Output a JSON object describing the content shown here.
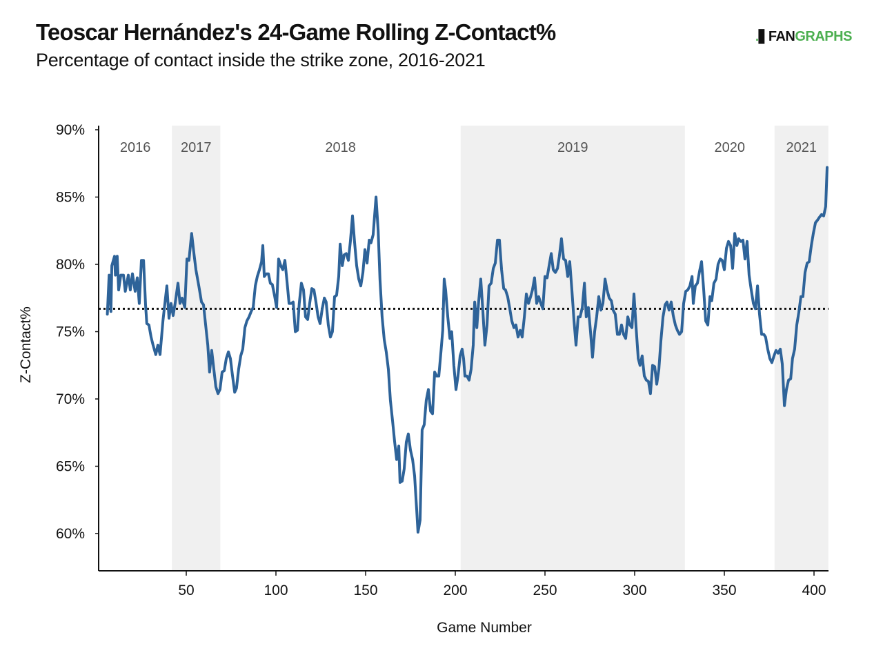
{
  "header": {
    "title": "Teoscar Hernández's 24-Game Rolling Z-Contact%",
    "subtitle": "Percentage of contact inside the strike zone, 2016-2021",
    "logo_prefix": "FAN",
    "logo_suffix": "GRAPHS"
  },
  "colors": {
    "line": "#2e6399",
    "band": "#f0f0f0",
    "reference": "#111111",
    "logo_green": "#4caf50"
  },
  "chart_data": {
    "type": "line",
    "title": "Teoscar Hernández's 24-Game Rolling Z-Contact%",
    "subtitle": "Percentage of contact inside the strike zone, 2016-2021",
    "xlabel": "Game Number",
    "ylabel": "Z-Contact%",
    "xlim": [
      0,
      410
    ],
    "ylim": [
      57.5,
      90
    ],
    "xticks": [
      50,
      100,
      150,
      200,
      250,
      300,
      350,
      400
    ],
    "yticks": [
      60,
      65,
      70,
      75,
      80,
      85,
      90
    ],
    "ytick_labels": [
      "60%",
      "65%",
      "70%",
      "75%",
      "80%",
      "85%",
      "90%"
    ],
    "grid": false,
    "reference_line": {
      "value": 76.7,
      "style": "dotted"
    },
    "seasons": [
      {
        "label": "2016",
        "start": 0,
        "end": 42,
        "shaded": false
      },
      {
        "label": "2017",
        "start": 42,
        "end": 69,
        "shaded": true
      },
      {
        "label": "2018",
        "start": 69,
        "end": 203,
        "shaded": false
      },
      {
        "label": "2019",
        "start": 203,
        "end": 328,
        "shaded": true
      },
      {
        "label": "2020",
        "start": 328,
        "end": 378,
        "shaded": false
      },
      {
        "label": "2021",
        "start": 378,
        "end": 408,
        "shaded": true
      }
    ],
    "series": [
      {
        "name": "Z-Contact% (24-game rolling)",
        "x": [
          6,
          7,
          8,
          8.5,
          10,
          10.5,
          11.5,
          12.3,
          13.5,
          15,
          16,
          17.7,
          18.8,
          20,
          21.5,
          22.7,
          23.8,
          25,
          26.2,
          27.3,
          28,
          29.2,
          30.4,
          31.5,
          33,
          34.2,
          35.4,
          37,
          38,
          39.2,
          40.4,
          41.5,
          42.7,
          43.8,
          45.4,
          46.5,
          47.7,
          49.2,
          50.4,
          51.5,
          53,
          54.2,
          55.4,
          57,
          58.5,
          59.6,
          60.8,
          62,
          63,
          64.2,
          65.4,
          66.5,
          67.7,
          68.8,
          70,
          71.2,
          72.3,
          73.5,
          74.6,
          75.8,
          77,
          78,
          79.2,
          80.4,
          81.5,
          82.7,
          83.8,
          85,
          86.2,
          87.3,
          88.5,
          89.6,
          90.8,
          92,
          92.7,
          93.5,
          94.6,
          95.8,
          96.9,
          98,
          99.2,
          100.4,
          101.5,
          102.7,
          103.8,
          105,
          106.2,
          107.3,
          108.5,
          109.6,
          110.8,
          112,
          113,
          114.2,
          115.4,
          116.5,
          117.7,
          118.8,
          120,
          121.2,
          122.3,
          123.5,
          124.6,
          125.8,
          127,
          128,
          129.2,
          130.4,
          131.5,
          132.7,
          133.8,
          135,
          135.8,
          137,
          138,
          139.2,
          140.4,
          141.5,
          142.7,
          143.8,
          145,
          146.2,
          147.3,
          148.5,
          149.6,
          150.8,
          152,
          153,
          154.2,
          155.8,
          157,
          158,
          159.2,
          160.4,
          161.5,
          162.7,
          163.8,
          165,
          166.2,
          167.3,
          168.5,
          169.2,
          170.4,
          171.5,
          172.7,
          173.8,
          175,
          176.2,
          177.3,
          178.5,
          179.2,
          180.4,
          181.5,
          182.7,
          183.8,
          185,
          186.2,
          187.3,
          188.5,
          189.6,
          190.8,
          192,
          193,
          193.8,
          194.6,
          195.8,
          197,
          198,
          199.2,
          200.4,
          201.5,
          202.7,
          203.8,
          204.6,
          205.4,
          206.5,
          207.7,
          208.8,
          210,
          210.8,
          212,
          213,
          214.2,
          215.4,
          216.5,
          217.7,
          218.8,
          220,
          221.2,
          222.3,
          223.5,
          224.6,
          225.8,
          227,
          228,
          229.2,
          230.4,
          231.5,
          232.7,
          233.8,
          235,
          236.2,
          237.3,
          238.5,
          239.6,
          240.8,
          242,
          243,
          244.2,
          245.4,
          246.5,
          247.7,
          248.8,
          250,
          251.2,
          252.3,
          253.5,
          254.6,
          255.8,
          257,
          258,
          259.2,
          260.4,
          261.5,
          262.7,
          263.8,
          265,
          266.2,
          267.3,
          268.5,
          269.6,
          270.8,
          272,
          273,
          274.2,
          275.4,
          276.5,
          277.7,
          278.8,
          280,
          281.2,
          282.3,
          283.5,
          284.6,
          285.8,
          287,
          288,
          289.2,
          290.4,
          291.5,
          292.7,
          293.8,
          295,
          296.2,
          297.3,
          298.5,
          299.6,
          300.8,
          302,
          303,
          304.2,
          305.4,
          306.5,
          307.7,
          308.8,
          310,
          311.2,
          312.3,
          313.5,
          314.6,
          315.8,
          317,
          318,
          319.2,
          320.4,
          321.5,
          322.7,
          323.8,
          325,
          326.2,
          327.3,
          328.5,
          329.6,
          330.8,
          332,
          332.7,
          333.8,
          335,
          336.2,
          337.3,
          338.5,
          339.6,
          340.8,
          342,
          343,
          344.2,
          345.4,
          346.5,
          347.7,
          348.8,
          350,
          351.2,
          352.3,
          353.5,
          354.6,
          355.8,
          357,
          358,
          359.2,
          360.4,
          361.5,
          362.7,
          363.8,
          365,
          366.2,
          367.3,
          368.5,
          369.6,
          370.8,
          372,
          373,
          374.2,
          375.4,
          376.5,
          377.7,
          378.8,
          380,
          381.2,
          382.3,
          383.5,
          384.6,
          385.8,
          387,
          388,
          389.2,
          390.4,
          391.5,
          392.7,
          393.8,
          395,
          396.2,
          397.3,
          398.5,
          399.6,
          400.8,
          402,
          403,
          404.2,
          405.4,
          406.5,
          407.3
        ],
        "values": [
          76.3,
          79.2,
          76.5,
          79.9,
          80.6,
          79.2,
          80.6,
          78.1,
          79.2,
          79.2,
          78.0,
          79.2,
          78.1,
          79.3,
          78.0,
          79.0,
          77.1,
          80.3,
          80.3,
          77.0,
          75.6,
          75.5,
          74.6,
          74.0,
          73.3,
          74.0,
          73.3,
          75.8,
          77.0,
          78.4,
          76.0,
          77.1,
          76.2,
          77.1,
          78.6,
          77.1,
          77.5,
          76.8,
          80.4,
          80.3,
          82.3,
          80.9,
          79.6,
          78.4,
          77.2,
          77.0,
          75.5,
          74.0,
          72.0,
          73.6,
          72.2,
          70.9,
          70.4,
          70.7,
          72.0,
          72.1,
          73.0,
          73.5,
          73.0,
          71.7,
          70.5,
          70.8,
          72.2,
          73.2,
          73.7,
          75.3,
          75.8,
          76.1,
          76.5,
          76.8,
          78.4,
          79.1,
          79.6,
          80.2,
          81.4,
          79.1,
          79.3,
          79.3,
          78.6,
          78.5,
          77.7,
          76.8,
          80.4,
          79.9,
          79.6,
          80.3,
          78.7,
          77.1,
          77.1,
          77.2,
          75.0,
          75.1,
          77.1,
          78.6,
          78.1,
          76.1,
          75.9,
          77.1,
          78.2,
          78.1,
          77.2,
          76.1,
          75.6,
          76.7,
          77.5,
          77.2,
          75.5,
          74.6,
          75.0,
          77.6,
          77.7,
          79.1,
          81.5,
          79.9,
          80.7,
          80.8,
          80.3,
          81.7,
          83.6,
          81.7,
          79.9,
          78.9,
          78.4,
          79.4,
          81.1,
          80.1,
          81.8,
          81.6,
          82.2,
          85.0,
          82.5,
          78.9,
          76.1,
          74.4,
          73.5,
          72.2,
          69.9,
          68.4,
          66.8,
          65.5,
          66.5,
          63.8,
          63.9,
          64.8,
          66.8,
          67.4,
          66.2,
          65.5,
          64.3,
          61.7,
          60.1,
          61.0,
          67.7,
          68.1,
          69.9,
          70.7,
          69.1,
          68.9,
          72.0,
          71.7,
          71.7,
          73.5,
          75.1,
          78.9,
          78.1,
          76.1,
          74.5,
          75.0,
          72.5,
          70.7,
          71.7,
          73.2,
          73.7,
          73.0,
          71.7,
          71.7,
          71.4,
          72.2,
          74.0,
          77.2,
          75.3,
          77.2,
          78.9,
          76.5,
          74.0,
          75.5,
          78.4,
          78.6,
          79.7,
          80.1,
          81.8,
          81.8,
          79.6,
          78.2,
          78.1,
          77.6,
          76.7,
          75.8,
          75.3,
          75.5,
          74.6,
          75.1,
          74.6,
          76.1,
          77.8,
          77.1,
          77.6,
          78.1,
          79.0,
          77.1,
          77.6,
          77.1,
          76.7,
          79.1,
          79.0,
          79.9,
          80.8,
          79.6,
          79.4,
          79.7,
          80.6,
          81.9,
          80.4,
          80.3,
          79.1,
          80.2,
          78.1,
          75.8,
          74.0,
          76.1,
          76.1,
          76.8,
          78.6,
          76.1,
          76.8,
          75.0,
          73.1,
          75.0,
          76.1,
          77.6,
          76.6,
          77.1,
          78.9,
          78.1,
          77.5,
          77.3,
          76.6,
          76.3,
          74.8,
          74.8,
          75.5,
          74.8,
          74.5,
          76.1,
          75.5,
          75.3,
          77.8,
          75.3,
          73.0,
          72.5,
          73.2,
          71.7,
          71.4,
          71.3,
          70.4,
          72.5,
          72.4,
          71.1,
          72.2,
          74.3,
          76.1,
          77.0,
          77.2,
          76.6,
          77.2,
          76.2,
          75.5,
          75.1,
          74.8,
          75.0,
          77.1,
          78.0,
          78.1,
          78.4,
          79.1,
          77.1,
          78.4,
          78.6,
          79.5,
          80.2,
          78.1,
          75.8,
          75.5,
          77.6,
          77.3,
          78.6,
          78.9,
          80.0,
          80.4,
          80.3,
          79.6,
          81.2,
          81.7,
          81.4,
          79.7,
          82.3,
          81.4,
          81.9,
          81.7,
          81.8,
          80.4,
          81.7,
          79.2,
          78.1,
          77.1,
          76.7,
          78.4,
          76.3,
          74.8,
          74.8,
          74.6,
          73.7,
          73.0,
          72.7,
          73.2,
          73.6,
          73.4,
          73.7,
          72.6,
          69.5,
          70.7,
          71.4,
          71.5,
          73.0,
          73.7,
          75.5,
          76.4,
          77.6,
          77.6,
          79.4,
          80.1,
          80.2,
          81.4,
          82.3,
          83.1,
          83.3,
          83.5,
          83.7,
          83.6,
          84.3,
          87.2
        ]
      }
    ]
  }
}
